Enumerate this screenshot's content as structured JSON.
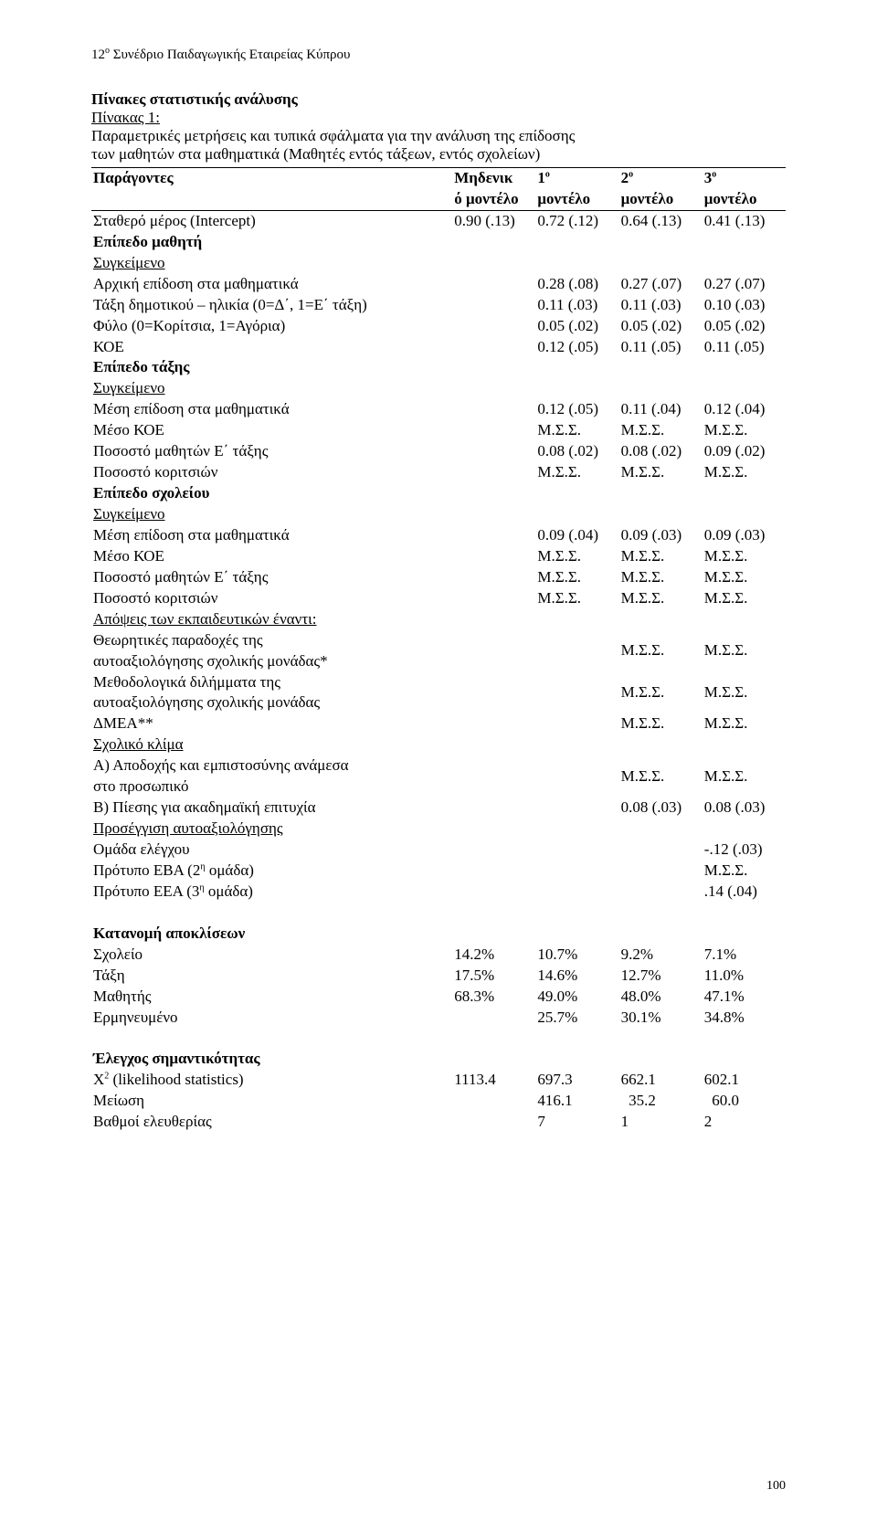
{
  "conference_header": {
    "prefix": "12",
    "sup": "ο",
    "rest": " Συνέδριο Παιδαγωγικής Εταιρείας Κύπρου"
  },
  "intro": {
    "title": "Πίνακες στατιστικής ανάλυσης",
    "table_label": "Πίνακας 1:",
    "desc_line1": "Παραμετρικές μετρήσεις και τυπικά σφάλματα για την ανάλυση της επίδοσης",
    "desc_line2": "των μαθητών στα μαθηματικά (Μαθητές εντός τάξεων, εντός σχολείων)"
  },
  "headers": {
    "factors": "Παράγοντες",
    "null_model_l1": "Μηδενικ",
    "null_model_l2": "ό μοντέλο",
    "m1_l1": "1",
    "m1_sup": "ο",
    "m_l2": "μοντέλο",
    "m2_l1": "2",
    "m2_sup": "ο",
    "m3_l1": "3",
    "m3_sup": "ο"
  },
  "rows": {
    "intercept": {
      "label": "Σταθερό μέρος (Intercept)",
      "v0": "0.90 (.13)",
      "v1": "0.72 (.12)",
      "v2": "0.64 (.13)",
      "v3": "0.41 (.13)"
    },
    "student_level": "Επίπεδο μαθητή",
    "sygkeimeno": "Συγκείμενο",
    "init_math": {
      "label": "Αρχική επίδοση στα μαθηματικά",
      "v1": "0.28 (.08)",
      "v2": "0.27 (.07)",
      "v3": "0.27 (.07)"
    },
    "grade_age": {
      "label": "Τάξη δημοτικού – ηλικία (0=Δ΄, 1=Ε΄ τάξη)",
      "v1": "0.11 (.03)",
      "v2": "0.11 (.03)",
      "v3": "0.10 (.03)"
    },
    "sex": {
      "label": "Φύλο (0=Κορίτσια, 1=Αγόρια)",
      "v1": "0.05 (.02)",
      "v2": "0.05 (.02)",
      "v3": "0.05 (.02)"
    },
    "koe": {
      "label": "ΚΟΕ",
      "v1": "0.12 (.05)",
      "v2": "0.11 (.05)",
      "v3": "0.11 (.05)"
    },
    "class_level": "Επίπεδο τάξης",
    "class_mean_math": {
      "label": "Μέση επίδοση στα μαθηματικά",
      "v1": "0.12 (.05)",
      "v2": "0.11 (.04)",
      "v3": "0.12 (.04)"
    },
    "class_mean_koe": {
      "label": "Μέσο ΚΟΕ",
      "v1": "Μ.Σ.Σ.",
      "v2": "Μ.Σ.Σ.",
      "v3": "Μ.Σ.Σ."
    },
    "class_pct_e": {
      "label": "Ποσοστό μαθητών Ε΄ τάξης",
      "v1": "0.08 (.02)",
      "v2": "0.08 (.02)",
      "v3": "0.09 (.02)"
    },
    "class_pct_girls": {
      "label": "Ποσοστό κοριτσιών",
      "v1": "Μ.Σ.Σ.",
      "v2": "Μ.Σ.Σ.",
      "v3": "Μ.Σ.Σ."
    },
    "school_level": "Επίπεδο σχολείου",
    "school_mean_math": {
      "label": "Μέση επίδοση στα μαθηματικά",
      "v1": "0.09 (.04)",
      "v2": "0.09 (.03)",
      "v3": "0.09 (.03)"
    },
    "school_mean_koe": {
      "label": "Μέσο ΚΟΕ",
      "v1": "Μ.Σ.Σ.",
      "v2": "Μ.Σ.Σ.",
      "v3": "Μ.Σ.Σ."
    },
    "school_pct_e": {
      "label": "Ποσοστό μαθητών Ε΄ τάξης",
      "v1": "Μ.Σ.Σ.",
      "v2": "Μ.Σ.Σ.",
      "v3": "Μ.Σ.Σ."
    },
    "school_pct_girls": {
      "label": "Ποσοστό κοριτσιών",
      "v1": "Μ.Σ.Σ.",
      "v2": "Μ.Σ.Σ.",
      "v3": "Μ.Σ.Σ."
    },
    "teachers_views": "Απόψεις των εκπαιδευτικών έναντι:",
    "theoretical_l1": "Θεωρητικές           παραδοχές           της",
    "theoretical_l2": "αυτοαξιολόγησης σχολικής μονάδας*",
    "theoretical_vals": {
      "v2": "Μ.Σ.Σ.",
      "v3": "Μ.Σ.Σ."
    },
    "methodological_l1": "Μεθοδολογικά          διλήμματα          της",
    "methodological_l2": "αυτοαξιολόγησης σχολικής μονάδας",
    "methodological_vals": {
      "v2": "Μ.Σ.Σ.",
      "v3": "Μ.Σ.Σ."
    },
    "dmea": {
      "label": "ΔΜΕΑ**",
      "v2": "Μ.Σ.Σ.",
      "v3": "Μ.Σ.Σ."
    },
    "school_climate": "Σχολικό κλίμα",
    "acceptance_l1": "Α) Αποδοχής και εμπιστοσύνης ανάμεσα",
    "acceptance_l2": "στο προσωπικό",
    "acceptance_vals": {
      "v2": "Μ.Σ.Σ.",
      "v3": "Μ.Σ.Σ."
    },
    "pressure": {
      "label": "Β) Πίεσης για ακαδημαϊκή επιτυχία",
      "v2": "0.08 (.03)",
      "v3": "0.08 (.03)"
    },
    "approach": "Προσέγγιση αυτοαξιολόγησης",
    "control_group": {
      "label": "Ομάδα ελέγχου",
      "v3": "-.12 (.03)"
    },
    "eba_label": "Πρότυπο ΕΒΑ (2",
    "eba_sup": "η",
    "eba_rest": " ομάδα)",
    "eba_val": "Μ.Σ.Σ.",
    "eea_label": "Πρότυπο ΕΕΑ (3",
    "eea_sup": "η",
    "eea_rest": " ομάδα)",
    "eea_val": ".14 (.04)"
  },
  "variance": {
    "title": "Κατανομή αποκλίσεων",
    "school": {
      "label": "Σχολείο",
      "v0": "14.2%",
      "v1": "10.7%",
      "v2": "9.2%",
      "v3": "7.1%"
    },
    "class": {
      "label": "Τάξη",
      "v0": "17.5%",
      "v1": "14.6%",
      "v2": "12.7%",
      "v3": "11.0%"
    },
    "student": {
      "label": "Μαθητής",
      "v0": "68.3%",
      "v1": "49.0%",
      "v2": "48.0%",
      "v3": "47.1%"
    },
    "explained": {
      "label": "Ερμηνευμένο",
      "v1": "25.7%",
      "v2": "30.1%",
      "v3": "34.8%"
    }
  },
  "significance": {
    "title": "Έλεγχος σημαντικότητας",
    "chi_label": "Χ",
    "chi_sup": "2",
    "chi_rest": " (likelihood statistics)",
    "chi": {
      "v0": "1113.4",
      "v1": "697.3",
      "v2": "662.1",
      "v3": "602.1"
    },
    "reduction": {
      "label": "Μείωση",
      "v1": "416.1",
      "v2": "  35.2",
      "v3": "  60.0"
    },
    "df": {
      "label": "Βαθμοί ελευθερίας",
      "v1": "7",
      "v2": "1",
      "v3": "2"
    }
  },
  "page_number": "100"
}
